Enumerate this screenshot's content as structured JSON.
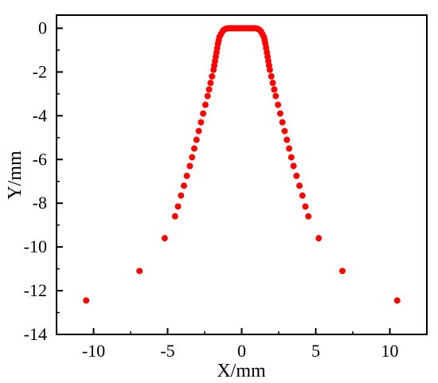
{
  "chart_data": {
    "type": "scatter",
    "xlabel": "X/mm",
    "ylabel": "Y/mm",
    "xlim": [
      -12.5,
      12.5
    ],
    "ylim": [
      -14,
      0.6
    ],
    "x_ticks": [
      -10,
      -5,
      0,
      5,
      10
    ],
    "y_ticks": [
      0,
      -2,
      -4,
      -6,
      -8,
      -10,
      -12,
      -14
    ],
    "x_tick_labels": [
      "-10",
      "-5",
      "0",
      "5",
      "10"
    ],
    "y_tick_labels": [
      "0",
      "-2",
      "-4",
      "-6",
      "-8",
      "-10",
      "-12",
      "-14"
    ],
    "marker_color": "#ff0000",
    "grid": false,
    "series": [
      {
        "x": [
          -10.5,
          -6.9,
          -5.2,
          -4.5,
          -4.3,
          -4.1,
          -3.9,
          -3.7,
          -3.5,
          -3.35,
          -3.2,
          -3.05,
          -2.9,
          -2.75,
          -2.6,
          -2.45,
          -2.3,
          -2.2,
          -2.1,
          -2.0,
          -1.9,
          -1.85,
          -1.8,
          -1.75,
          -1.7,
          -1.65,
          -1.6,
          -1.55,
          -1.5,
          -1.4,
          -1.3,
          -1.2,
          -1.05,
          -0.9,
          -0.75,
          -0.6,
          -0.45,
          -0.3,
          -0.15,
          0.0,
          0.15,
          0.3,
          0.45,
          0.6,
          0.75,
          0.9,
          1.05,
          1.2,
          1.3,
          1.4,
          1.5,
          1.55,
          1.6,
          1.65,
          1.7,
          1.75,
          1.8,
          1.85,
          1.9,
          2.0,
          2.1,
          2.2,
          2.3,
          2.45,
          2.6,
          2.75,
          2.9,
          3.05,
          3.2,
          3.35,
          3.5,
          3.7,
          3.9,
          4.1,
          4.3,
          4.5,
          5.2,
          6.8,
          10.5
        ],
        "y": [
          -12.45,
          -11.1,
          -9.6,
          -8.6,
          -8.15,
          -7.65,
          -7.2,
          -6.75,
          -6.3,
          -5.9,
          -5.5,
          -5.1,
          -4.7,
          -4.3,
          -3.9,
          -3.5,
          -3.1,
          -2.8,
          -2.5,
          -2.2,
          -1.9,
          -1.7,
          -1.5,
          -1.3,
          -1.1,
          -0.9,
          -0.7,
          -0.55,
          -0.4,
          -0.27,
          -0.15,
          -0.07,
          -0.02,
          0.0,
          0.0,
          0.0,
          0.0,
          0.0,
          0.0,
          0.0,
          0.0,
          0.0,
          0.0,
          0.0,
          0.0,
          0.0,
          -0.02,
          -0.07,
          -0.15,
          -0.27,
          -0.4,
          -0.55,
          -0.7,
          -0.9,
          -1.1,
          -1.3,
          -1.5,
          -1.7,
          -1.9,
          -2.2,
          -2.5,
          -2.8,
          -3.1,
          -3.5,
          -3.9,
          -4.3,
          -4.7,
          -5.1,
          -5.5,
          -5.9,
          -6.3,
          -6.75,
          -7.2,
          -7.65,
          -8.15,
          -8.6,
          -9.6,
          -11.1,
          -12.45
        ]
      }
    ]
  }
}
